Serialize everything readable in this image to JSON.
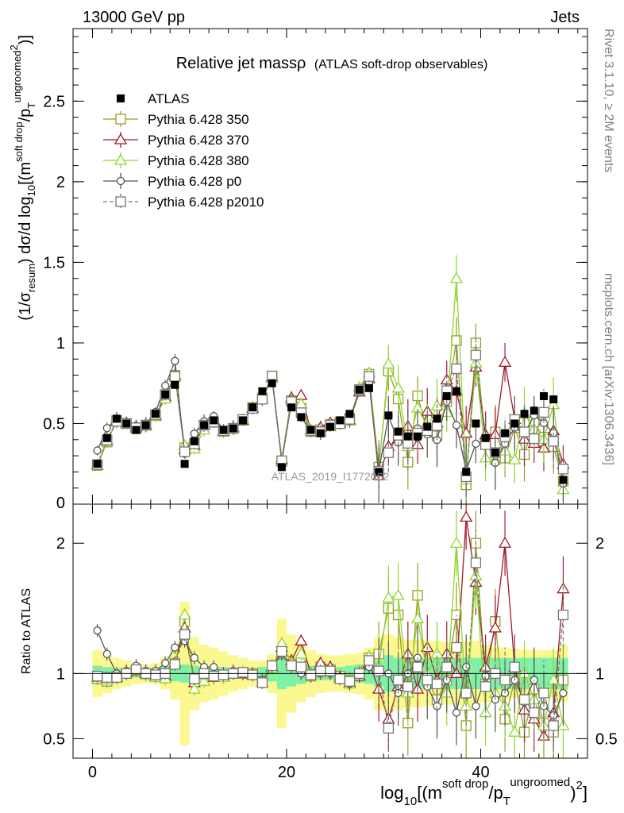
{
  "header": {
    "left": "13000 GeV pp",
    "right": "Jets"
  },
  "side_labels": {
    "rivet": "Rivet 3.1.10, ≥ 2M events",
    "mcplots": "mcplots.cern.ch [arXiv:1306.3436]"
  },
  "colors": {
    "ATLAS": "#000000",
    "Pythia 6.428 350": "#9b9b2b",
    "Pythia 6.428 370": "#a01c2a",
    "Pythia 6.428 380": "#8fd62f",
    "Pythia 6.428 p0": "#555555",
    "Pythia 6.428 p2010": "#777777",
    "band_light": "#fbf88f",
    "band_dark": "#7ef0a8"
  },
  "chart_data": {
    "type": "line",
    "title_main": "Relative jet massρ",
    "title_sub": "(ATLAS soft-drop observables)",
    "watermark": "ATLAS_2019_I1772062",
    "xlabel": "log10[(m^{soft drop}/p_T^{ungroomed})^2]",
    "xlabel_parts": {
      "base": "log",
      "sub10": "10",
      "open": "[(m",
      "sup_sd": "soft drop",
      "slash": "/p",
      "subT": "T",
      "sup_ug": "ungroomed",
      "close": ")",
      "sup2": "2",
      "end": "]"
    },
    "ylabel": "(1/σ_resum) dσ/d log10[(m^{soft drop}/p_T^{ungroomed})^2]",
    "ylabel_parts": {
      "a": "(1/σ",
      "sub_resum": "resum",
      "b": ") dσ/d log",
      "sub10": "10",
      "c": "[(m",
      "sup_sd": "soft drop",
      "d": "/p",
      "subT": "T",
      "sup_ug": "ungroomed",
      "sup2": "2",
      "e": ")]"
    },
    "ratio_ylabel": "Ratio to ATLAS",
    "xlim": [
      -2,
      51
    ],
    "ylim": [
      0,
      2.95
    ],
    "ratio_ylim": [
      0.35,
      2.3
    ],
    "xticks": [
      0,
      20,
      40
    ],
    "yticks": [
      0.5,
      1,
      1.5,
      2,
      2.5
    ],
    "ratio_yticks": [
      0.5,
      1,
      2
    ],
    "ratio_ytick_labels": [
      "0.5",
      "1",
      "2"
    ],
    "ytick_labels": [
      "0.5",
      "1",
      "1.5",
      "2",
      "2.5"
    ],
    "xtick_labels": [
      "0",
      "20",
      "40"
    ],
    "y_zero_label": "0",
    "legend": [
      {
        "name": "ATLAS",
        "marker": "square-filled",
        "line": "none"
      },
      {
        "name": "Pythia 6.428 350",
        "marker": "square-open",
        "line": "solid"
      },
      {
        "name": "Pythia 6.428 370",
        "marker": "triangle-open",
        "line": "solid"
      },
      {
        "name": "Pythia 6.428 380",
        "marker": "triangle-open",
        "line": "solid"
      },
      {
        "name": "Pythia 6.428 p0",
        "marker": "circle-open",
        "line": "solid"
      },
      {
        "name": "Pythia 6.428 p2010",
        "marker": "square-open",
        "line": "dashed"
      }
    ],
    "atlas_points": [
      0.25,
      0.41,
      0.53,
      0.5,
      0.46,
      0.49,
      0.56,
      0.68,
      0.74,
      0.25,
      0.39,
      0.49,
      0.52,
      0.46,
      0.47,
      0.52,
      0.6,
      0.7,
      0.75,
      0.23,
      0.6,
      0.54,
      0.46,
      0.44,
      0.48,
      0.52,
      0.56,
      0.71,
      0.72,
      0.2,
      0.55,
      0.45,
      0.42,
      0.42,
      0.48,
      0.53,
      0.67,
      0.7,
      0.2,
      0.5,
      0.41,
      0.32,
      0.44,
      0.5,
      0.56,
      0.58,
      0.67,
      0.65,
      0.15
    ],
    "series": [
      {
        "name": "Pythia 6.428 350",
        "ratio": [
          0.96,
          0.94,
          0.98,
          1.0,
          1.02,
          1.0,
          0.98,
          0.97,
          1.08,
          1.4,
          0.95,
          1.0,
          0.98,
          0.98,
          1.0,
          1.0,
          1.0,
          0.94,
          1.06,
          1.15,
          1.07,
          1.1,
          0.98,
          1.05,
          1.03,
          0.98,
          0.95,
          1.0,
          1.12,
          1.15,
          1.5,
          1.45,
          0.62,
          1.6,
          0.95,
          0.8,
          0.95,
          1.45,
          0.6,
          2.0,
          0.92,
          1.4,
          0.65,
          0.95,
          0.55,
          0.88,
          0.62,
          0.55,
          0.95
        ]
      },
      {
        "name": "Pythia 6.428 370",
        "ratio": [
          0.97,
          0.96,
          0.97,
          1.01,
          1.04,
          1.0,
          0.98,
          0.98,
          1.08,
          1.35,
          0.93,
          1.0,
          0.97,
          0.98,
          1.01,
          1.0,
          0.99,
          0.93,
          1.05,
          1.2,
          1.1,
          1.25,
          1.0,
          1.08,
          1.05,
          0.97,
          0.93,
          0.98,
          1.08,
          0.88,
          0.65,
          0.9,
          1.15,
          0.88,
          1.2,
          0.95,
          1.15,
          1.0,
          2.2,
          1.7,
          1.05,
          1.35,
          2.0,
          1.05,
          0.72,
          0.65,
          0.52,
          0.7,
          1.65
        ]
      },
      {
        "name": "Pythia 6.428 380",
        "ratio": [
          0.97,
          0.95,
          0.99,
          1.0,
          1.02,
          0.99,
          0.97,
          0.96,
          1.07,
          1.45,
          0.88,
          0.94,
          0.98,
          0.97,
          1.0,
          1.01,
          1.0,
          0.93,
          1.04,
          1.23,
          1.08,
          1.15,
          1.0,
          1.02,
          1.0,
          0.96,
          0.92,
          1.02,
          1.13,
          1.05,
          1.58,
          1.6,
          0.85,
          1.42,
          1.0,
          1.15,
          0.85,
          2.0,
          0.75,
          1.75,
          0.7,
          0.85,
          0.75,
          0.55,
          1.0,
          0.8,
          0.6,
          0.95,
          0.6
        ]
      },
      {
        "name": "Pythia 6.428 p0",
        "ratio": [
          1.33,
          1.15,
          1.0,
          1.02,
          1.06,
          1.02,
          1.02,
          1.08,
          1.2,
          1.25,
          1.12,
          1.05,
          1.05,
          1.0,
          1.02,
          1.0,
          1.0,
          0.95,
          1.05,
          1.15,
          1.05,
          1.0,
          0.98,
          1.0,
          1.0,
          0.96,
          0.92,
          1.0,
          1.05,
          1.02,
          1.0,
          0.85,
          1.0,
          1.12,
          0.9,
          0.75,
          0.95,
          0.7,
          1.05,
          0.75,
          0.98,
          0.8,
          0.85,
          0.95,
          0.78,
          0.95,
          0.75,
          0.68,
          0.85
        ]
      },
      {
        "name": "Pythia 6.428 p2010",
        "ratio": [
          0.98,
          0.97,
          0.97,
          1.0,
          1.03,
          1.0,
          0.99,
          1.0,
          1.07,
          1.3,
          0.96,
          1.0,
          0.98,
          0.99,
          1.0,
          1.01,
          0.99,
          0.93,
          1.06,
          1.17,
          1.06,
          1.05,
          0.99,
          1.02,
          1.02,
          0.96,
          0.94,
          1.0,
          1.1,
          1.02,
          0.58,
          0.95,
          0.9,
          1.05,
          0.95,
          0.92,
          1.05,
          1.2,
          0.85,
          1.85,
          0.9,
          1.0,
          0.95,
          1.05,
          0.8,
          0.7,
          0.85,
          0.6,
          1.45
        ]
      }
    ],
    "uncertainty_band": {
      "light_half_width": [
        0.18,
        0.15,
        0.12,
        0.1,
        0.08,
        0.07,
        0.08,
        0.12,
        0.2,
        0.55,
        0.28,
        0.22,
        0.2,
        0.17,
        0.14,
        0.12,
        0.1,
        0.1,
        0.15,
        0.42,
        0.3,
        0.22,
        0.18,
        0.15,
        0.14,
        0.14,
        0.15,
        0.16,
        0.2,
        0.28,
        0.3,
        0.28,
        0.26,
        0.26,
        0.25,
        0.25,
        0.24,
        0.24,
        0.25,
        0.25,
        0.22,
        0.2,
        0.2,
        0.19,
        0.18,
        0.18,
        0.18,
        0.18,
        0.22
      ],
      "dark_half_width": [
        0.06,
        0.05,
        0.04,
        0.04,
        0.03,
        0.03,
        0.04,
        0.05,
        0.06,
        0.07,
        0.06,
        0.05,
        0.05,
        0.05,
        0.04,
        0.04,
        0.04,
        0.05,
        0.06,
        0.12,
        0.1,
        0.08,
        0.06,
        0.05,
        0.05,
        0.05,
        0.06,
        0.07,
        0.08,
        0.1,
        0.14,
        0.12,
        0.12,
        0.12,
        0.12,
        0.12,
        0.12,
        0.12,
        0.12,
        0.12,
        0.12,
        0.12,
        0.12,
        0.12,
        0.12,
        0.12,
        0.12,
        0.12,
        0.12
      ]
    }
  }
}
